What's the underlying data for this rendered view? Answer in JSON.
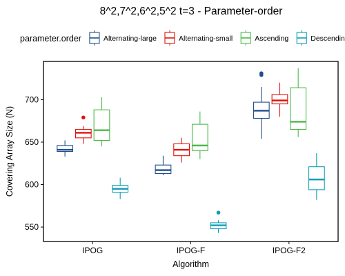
{
  "chart_data": {
    "type": "box",
    "title": "8^2,7^2,6^2,5^2 t=3 - Parameter-order",
    "xlabel": "Algorithm",
    "ylabel": "Covering Array Size (N)",
    "ylim": [
      533,
      745
    ],
    "yticks": [
      550,
      600,
      650,
      700
    ],
    "grid": false,
    "legend": {
      "title": "parameter.order",
      "position": "top"
    },
    "categories": [
      "IPOG",
      "IPOG-F",
      "IPOG-F2"
    ],
    "series": [
      {
        "name": "Alternating-large",
        "color": "#1f4e8c",
        "boxes": [
          {
            "min": 633,
            "q1": 639,
            "median": 641,
            "q3": 646,
            "max": 652,
            "outliers": []
          },
          {
            "min": 611,
            "q1": 613,
            "median": 617,
            "q3": 623,
            "max": 634,
            "outliers": []
          },
          {
            "min": 654,
            "q1": 678,
            "median": 687,
            "q3": 697,
            "max": 715,
            "outliers": [
              729,
              731
            ]
          }
        ]
      },
      {
        "name": "Alternating-small",
        "color": "#e3120b",
        "boxes": [
          {
            "min": 648,
            "q1": 655,
            "median": 661,
            "q3": 665,
            "max": 669,
            "outliers": [
              679
            ]
          },
          {
            "min": 626,
            "q1": 634,
            "median": 641,
            "q3": 648,
            "max": 655,
            "outliers": []
          },
          {
            "min": 680,
            "q1": 695,
            "median": 699,
            "q3": 706,
            "max": 720,
            "outliers": []
          }
        ]
      },
      {
        "name": "Ascending",
        "color": "#4cb848",
        "boxes": [
          {
            "min": 645,
            "q1": 652,
            "median": 664,
            "q3": 688,
            "max": 703,
            "outliers": []
          },
          {
            "min": 630,
            "q1": 640,
            "median": 646,
            "q3": 671,
            "max": 686,
            "outliers": []
          },
          {
            "min": 656,
            "q1": 665,
            "median": 674,
            "q3": 714,
            "max": 737,
            "outliers": []
          }
        ]
      },
      {
        "name": "Descending",
        "color": "#0f9cb8",
        "boxes": [
          {
            "min": 583,
            "q1": 591,
            "median": 595,
            "q3": 599,
            "max": 608,
            "outliers": []
          },
          {
            "min": 543,
            "q1": 548,
            "median": 552,
            "q3": 555,
            "max": 558,
            "outliers": [
              567
            ]
          },
          {
            "min": 582,
            "q1": 594,
            "median": 606,
            "q3": 621,
            "max": 637,
            "outliers": []
          }
        ]
      }
    ]
  }
}
